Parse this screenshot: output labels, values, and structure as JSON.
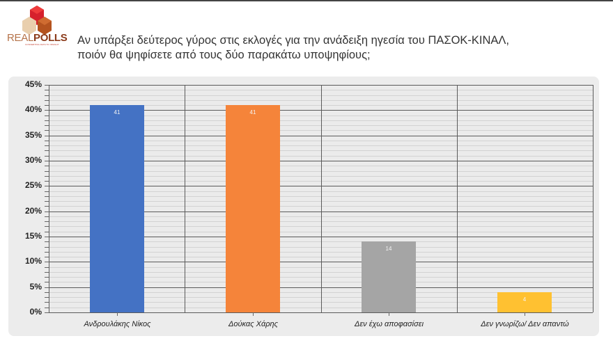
{
  "header": {
    "logo": {
      "name": "REALPOLLS",
      "part1": "REAL",
      "part2": "POLLS",
      "tagline": "CONVERTING DATA TO INSIGHT"
    },
    "title_line1": "Αν υπάρξει δεύτερος γύρος στις εκλογές για την ανάδειξη ηγεσία του ΠΑΣΟΚ-ΚΙΝΑΛ,",
    "title_line2": "ποιόν θα ψηφίσετε από τους δύο παρακάτω υποψηφίους;"
  },
  "chart_data": {
    "type": "bar",
    "title": "Αν υπάρξει δεύτερος γύρος στις εκλογές για την ανάδειξη ηγεσία του ΠΑΣΟΚ-ΚΙΝΑΛ, ποιόν θα ψηφίσετε από τους δύο παρακάτω υποψηφίους;",
    "categories": [
      "Ανδρουλάκης Νίκος",
      "Δούκας Χάρης",
      "Δεν έχω αποφασίσει",
      "Δεν γνωρίζω/ Δεν απαντώ"
    ],
    "values": [
      41,
      41,
      14,
      4
    ],
    "value_labels": [
      "41",
      "41",
      "14",
      "4"
    ],
    "colors": [
      "#4472c4",
      "#f5843a",
      "#a5a5a5",
      "#ffc131"
    ],
    "xlabel": "",
    "ylabel": "",
    "ylim": [
      0,
      45
    ],
    "yticks": [
      "0%",
      "5%",
      "10%",
      "15%",
      "20%",
      "25%",
      "30%",
      "35%",
      "40%",
      "45%"
    ],
    "grid": true,
    "legend": null
  }
}
